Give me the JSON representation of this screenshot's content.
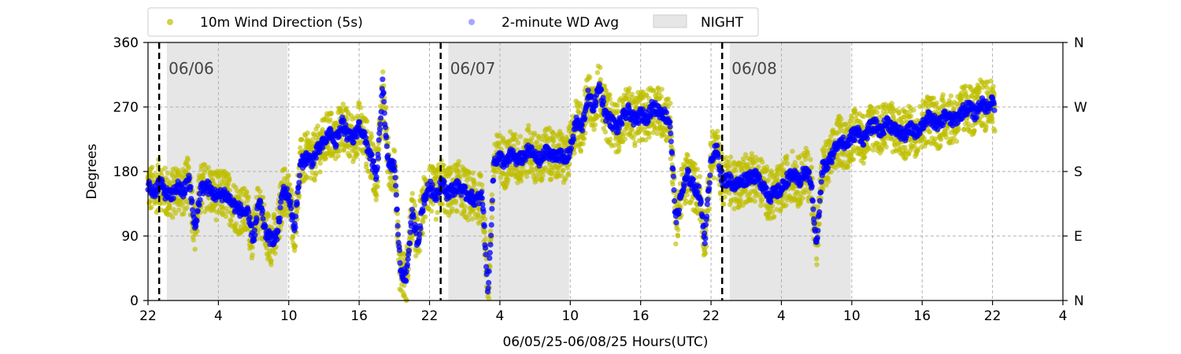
{
  "chart_data": {
    "type": "scatter",
    "xlabel": "06/05/25-06/08/25  Hours(UTC)",
    "ylabel": "Degrees",
    "x_range_hours": [
      0,
      78
    ],
    "ylim": [
      0,
      360
    ],
    "x_ticks": [
      {
        "h": 0,
        "label": "22"
      },
      {
        "h": 6,
        "label": "4"
      },
      {
        "h": 12,
        "label": "10"
      },
      {
        "h": 18,
        "label": "16"
      },
      {
        "h": 24,
        "label": "22"
      },
      {
        "h": 30,
        "label": "4"
      },
      {
        "h": 36,
        "label": "10"
      },
      {
        "h": 42,
        "label": "16"
      },
      {
        "h": 48,
        "label": "22"
      },
      {
        "h": 54,
        "label": "4"
      },
      {
        "h": 60,
        "label": "10"
      },
      {
        "h": 66,
        "label": "16"
      },
      {
        "h": 72,
        "label": "22"
      },
      {
        "h": 78,
        "label": "4"
      }
    ],
    "y_ticks": [
      {
        "v": 0,
        "label": "0"
      },
      {
        "v": 90,
        "label": "90"
      },
      {
        "v": 180,
        "label": "180"
      },
      {
        "v": 270,
        "label": "270"
      },
      {
        "v": 360,
        "label": "360"
      }
    ],
    "y_ticks_right": [
      {
        "v": 0,
        "label": "N"
      },
      {
        "v": 90,
        "label": "E"
      },
      {
        "v": 180,
        "label": "S"
      },
      {
        "v": 270,
        "label": "W"
      },
      {
        "v": 360,
        "label": "N"
      }
    ],
    "grid": true,
    "legend_position": "top-left, above plot",
    "legend": [
      {
        "label": "10m Wind Direction (5s)",
        "kind": "marker",
        "color": "#bfbf00"
      },
      {
        "label": "2-minute WD Avg",
        "kind": "marker",
        "color": "#0000ff"
      },
      {
        "label": "NIGHT",
        "kind": "patch",
        "color": "#e6e6e6"
      }
    ],
    "night_spans_hours": [
      [
        1.6,
        11.9
      ],
      [
        25.6,
        35.9
      ],
      [
        49.6,
        59.9
      ]
    ],
    "day_boundaries": [
      {
        "h": 0.95,
        "label": "06/06"
      },
      {
        "h": 24.95,
        "label": "06/07"
      },
      {
        "h": 48.95,
        "label": "06/08"
      }
    ],
    "series": [
      {
        "name": "2-minute WD Avg",
        "color": "#0000ff",
        "points": [
          [
            0,
            160
          ],
          [
            0.5,
            150
          ],
          [
            1,
            165
          ],
          [
            1.5,
            150
          ],
          [
            2,
            145
          ],
          [
            2.5,
            160
          ],
          [
            3,
            150
          ],
          [
            3.5,
            170
          ],
          [
            4,
            100
          ],
          [
            4.5,
            155
          ],
          [
            5,
            160
          ],
          [
            5.5,
            150
          ],
          [
            6,
            145
          ],
          [
            6.5,
            150
          ],
          [
            7,
            140
          ],
          [
            7.5,
            130
          ],
          [
            8,
            125
          ],
          [
            8.5,
            120
          ],
          [
            9,
            85
          ],
          [
            9.5,
            140
          ],
          [
            10,
            95
          ],
          [
            10.5,
            85
          ],
          [
            11,
            90
          ],
          [
            11.5,
            155
          ],
          [
            12,
            145
          ],
          [
            12.5,
            100
          ],
          [
            13,
            190
          ],
          [
            13.5,
            200
          ],
          [
            14,
            195
          ],
          [
            14.5,
            210
          ],
          [
            15,
            220
          ],
          [
            15.5,
            235
          ],
          [
            16,
            220
          ],
          [
            16.5,
            250
          ],
          [
            17,
            230
          ],
          [
            17.5,
            225
          ],
          [
            18,
            245
          ],
          [
            18.5,
            225
          ],
          [
            19,
            200
          ],
          [
            19.5,
            170
          ],
          [
            20,
            300
          ],
          [
            20.5,
            185
          ],
          [
            21,
            190
          ],
          [
            21.5,
            45
          ],
          [
            22,
            30
          ],
          [
            22.5,
            120
          ],
          [
            23,
            80
          ],
          [
            23.5,
            140
          ],
          [
            24,
            160
          ],
          [
            24.5,
            145
          ],
          [
            25,
            165
          ],
          [
            25.5,
            150
          ],
          [
            26,
            155
          ],
          [
            26.5,
            160
          ],
          [
            27,
            150
          ],
          [
            27.5,
            145
          ],
          [
            28,
            140
          ],
          [
            28.5,
            145
          ],
          [
            29,
            10
          ],
          [
            29.5,
            195
          ],
          [
            30,
            200
          ],
          [
            30.5,
            190
          ],
          [
            31,
            205
          ],
          [
            31.5,
            195
          ],
          [
            32,
            200
          ],
          [
            32.5,
            210
          ],
          [
            33,
            200
          ],
          [
            33.5,
            195
          ],
          [
            34,
            210
          ],
          [
            34.5,
            200
          ],
          [
            35,
            205
          ],
          [
            35.5,
            195
          ],
          [
            36,
            210
          ],
          [
            36.5,
            250
          ],
          [
            37,
            240
          ],
          [
            37.5,
            285
          ],
          [
            38,
            270
          ],
          [
            38.5,
            300
          ],
          [
            39,
            260
          ],
          [
            39.5,
            250
          ],
          [
            40,
            240
          ],
          [
            40.5,
            255
          ],
          [
            41,
            265
          ],
          [
            41.5,
            250
          ],
          [
            42,
            260
          ],
          [
            42.5,
            255
          ],
          [
            43,
            270
          ],
          [
            43.5,
            265
          ],
          [
            44,
            260
          ],
          [
            44.5,
            250
          ],
          [
            45,
            110
          ],
          [
            45.5,
            150
          ],
          [
            46,
            175
          ],
          [
            46.5,
            160
          ],
          [
            47,
            150
          ],
          [
            47.5,
            85
          ],
          [
            48,
            200
          ],
          [
            48.5,
            210
          ],
          [
            49,
            165
          ],
          [
            49.5,
            170
          ],
          [
            50,
            160
          ],
          [
            50.5,
            165
          ],
          [
            51,
            170
          ],
          [
            51.5,
            175
          ],
          [
            52,
            170
          ],
          [
            52.5,
            160
          ],
          [
            53,
            145
          ],
          [
            53.5,
            150
          ],
          [
            54,
            155
          ],
          [
            54.5,
            170
          ],
          [
            55,
            175
          ],
          [
            55.5,
            165
          ],
          [
            56,
            180
          ],
          [
            56.5,
            170
          ],
          [
            57,
            75
          ],
          [
            57.5,
            185
          ],
          [
            58,
            190
          ],
          [
            58.5,
            210
          ],
          [
            59,
            225
          ],
          [
            59.5,
            215
          ],
          [
            60,
            230
          ],
          [
            60.5,
            235
          ],
          [
            61,
            225
          ],
          [
            61.5,
            240
          ],
          [
            62,
            245
          ],
          [
            62.5,
            235
          ],
          [
            63,
            250
          ],
          [
            63.5,
            240
          ],
          [
            64,
            235
          ],
          [
            64.5,
            230
          ],
          [
            65,
            240
          ],
          [
            65.5,
            235
          ],
          [
            66,
            245
          ],
          [
            66.5,
            255
          ],
          [
            67,
            250
          ],
          [
            67.5,
            245
          ],
          [
            68,
            260
          ],
          [
            68.5,
            250
          ],
          [
            69,
            255
          ],
          [
            69.5,
            265
          ],
          [
            70,
            270
          ],
          [
            70.5,
            260
          ],
          [
            71,
            275
          ],
          [
            71.5,
            270
          ],
          [
            72,
            280
          ],
          [
            72.2,
            270
          ]
        ]
      }
    ]
  }
}
